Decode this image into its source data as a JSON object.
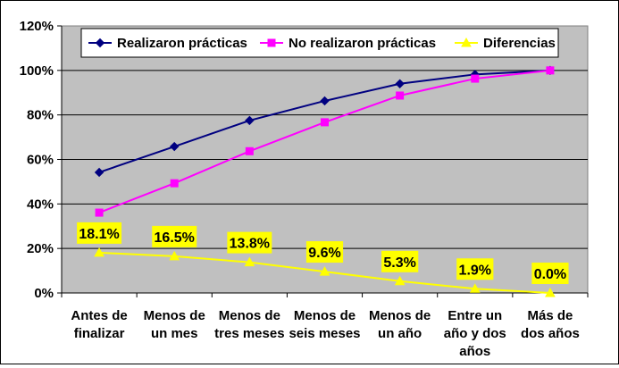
{
  "chart_data": {
    "type": "line",
    "categories": [
      [
        "Antes de",
        "finalizar"
      ],
      [
        "Menos de",
        "un mes"
      ],
      [
        "Menos de",
        "tres meses"
      ],
      [
        "Menos de",
        "seis meses"
      ],
      [
        "Menos de",
        "un año"
      ],
      [
        "Entre un",
        "año y dos",
        "años"
      ],
      [
        "Más de",
        "dos años"
      ]
    ],
    "ylim": [
      0,
      120
    ],
    "yticks": [
      "0%",
      "20%",
      "40%",
      "60%",
      "80%",
      "100%",
      "120%"
    ],
    "grid": true,
    "legend_position": "top",
    "series": [
      {
        "name": "Realizaron prácticas",
        "color": "#000080",
        "marker": "diamond",
        "values": [
          54.2,
          65.8,
          77.5,
          86.3,
          94.0,
          98.2,
          100.0
        ]
      },
      {
        "name": "No realizaron prácticas",
        "color": "#FF00FF",
        "marker": "square",
        "values": [
          36.1,
          49.3,
          63.7,
          76.7,
          88.7,
          96.3,
          100.0
        ]
      },
      {
        "name": "Diferencias",
        "color": "#FFFF00",
        "marker": "triangle",
        "values": [
          18.1,
          16.5,
          13.8,
          9.6,
          5.3,
          1.9,
          0.0
        ],
        "labels": [
          "18.1%",
          "16.5%",
          "13.8%",
          "9.6%",
          "5.3%",
          "1.9%",
          "0.0%"
        ]
      }
    ]
  }
}
